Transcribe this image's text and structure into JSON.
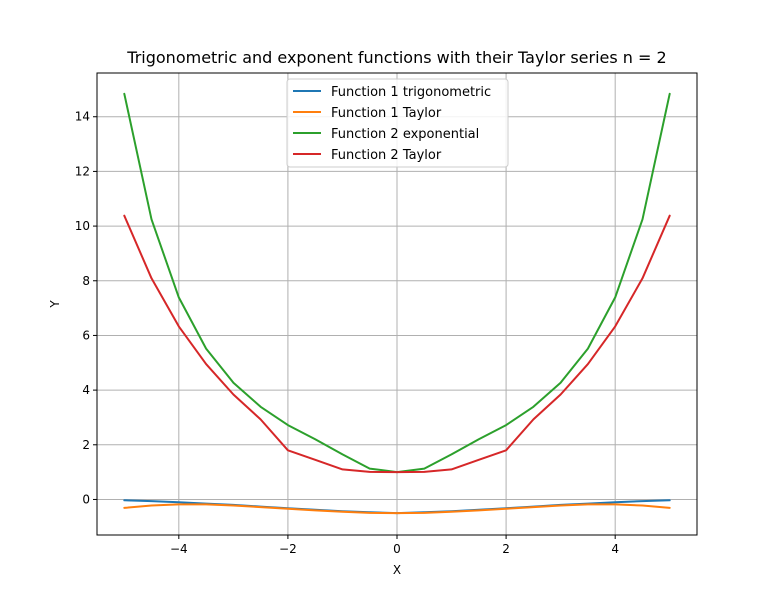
{
  "chart_data": {
    "type": "line",
    "title": "Trigonometric and exponent functions with their Taylor series n = 2",
    "xlabel": "X",
    "ylabel": "Y",
    "xlim": [
      -5.5,
      5.5
    ],
    "ylim": [
      -1.3,
      15.6
    ],
    "xticks": [
      -4,
      -2,
      0,
      2,
      4
    ],
    "xtick_labels": [
      "−4",
      "−2",
      "0",
      "2",
      "4"
    ],
    "yticks": [
      0,
      2,
      4,
      6,
      8,
      10,
      12,
      14
    ],
    "ytick_labels": [
      "0",
      "2",
      "4",
      "6",
      "8",
      "10",
      "12",
      "14"
    ],
    "grid": true,
    "legend_position": "top-center",
    "series": [
      {
        "name": "Function 1 trigonometric",
        "color": "#1f77b4",
        "x": [
          -5,
          -4.5,
          -4,
          -3.5,
          -3,
          -2.5,
          -2,
          -1.5,
          -1,
          -0.5,
          0,
          0.5,
          1,
          1.5,
          2,
          2.5,
          3,
          3.5,
          4,
          4.5,
          5
        ],
        "y": [
          -0.03,
          -0.06,
          -0.1,
          -0.15,
          -0.2,
          -0.26,
          -0.32,
          -0.38,
          -0.43,
          -0.47,
          -0.5,
          -0.47,
          -0.43,
          -0.38,
          -0.32,
          -0.26,
          -0.2,
          -0.15,
          -0.1,
          -0.06,
          -0.03
        ]
      },
      {
        "name": "Function 1 Taylor",
        "color": "#ff7f0e",
        "x": [
          -5,
          -4.5,
          -4,
          -3.5,
          -3,
          -2.5,
          -2,
          -1.5,
          -1,
          -0.5,
          0,
          0.5,
          1,
          1.5,
          2,
          2.5,
          3,
          3.5,
          4,
          4.5,
          5
        ],
        "y": [
          -0.31,
          -0.22,
          -0.18,
          -0.18,
          -0.22,
          -0.28,
          -0.34,
          -0.4,
          -0.45,
          -0.49,
          -0.5,
          -0.49,
          -0.45,
          -0.4,
          -0.34,
          -0.28,
          -0.22,
          -0.18,
          -0.18,
          -0.22,
          -0.31
        ]
      },
      {
        "name": "Function 2 exponential",
        "color": "#2ca02c",
        "x": [
          -5,
          -4.5,
          -4,
          -3.5,
          -3,
          -2.5,
          -2,
          -1.5,
          -1,
          -0.5,
          0,
          0.5,
          1,
          1.5,
          2,
          2.5,
          3,
          3.5,
          4,
          4.5,
          5
        ],
        "y": [
          14.84,
          10.25,
          7.39,
          5.52,
          4.27,
          3.39,
          2.72,
          2.2,
          1.65,
          1.13,
          1.0,
          1.13,
          1.65,
          2.2,
          2.72,
          3.39,
          4.27,
          5.52,
          7.39,
          10.25,
          14.84
        ]
      },
      {
        "name": "Function 2 Taylor",
        "color": "#d62728",
        "x": [
          -5,
          -4.5,
          -4,
          -3.5,
          -3,
          -2.5,
          -2,
          -1.5,
          -1,
          -0.5,
          0,
          0.5,
          1,
          1.5,
          2,
          2.5,
          3,
          3.5,
          4,
          4.5,
          5
        ],
        "y": [
          10.38,
          8.09,
          6.33,
          4.95,
          3.84,
          2.93,
          1.8,
          1.45,
          1.1,
          1.01,
          1.0,
          1.01,
          1.1,
          1.45,
          1.8,
          2.93,
          3.84,
          4.95,
          6.33,
          8.09,
          10.38
        ]
      }
    ]
  }
}
